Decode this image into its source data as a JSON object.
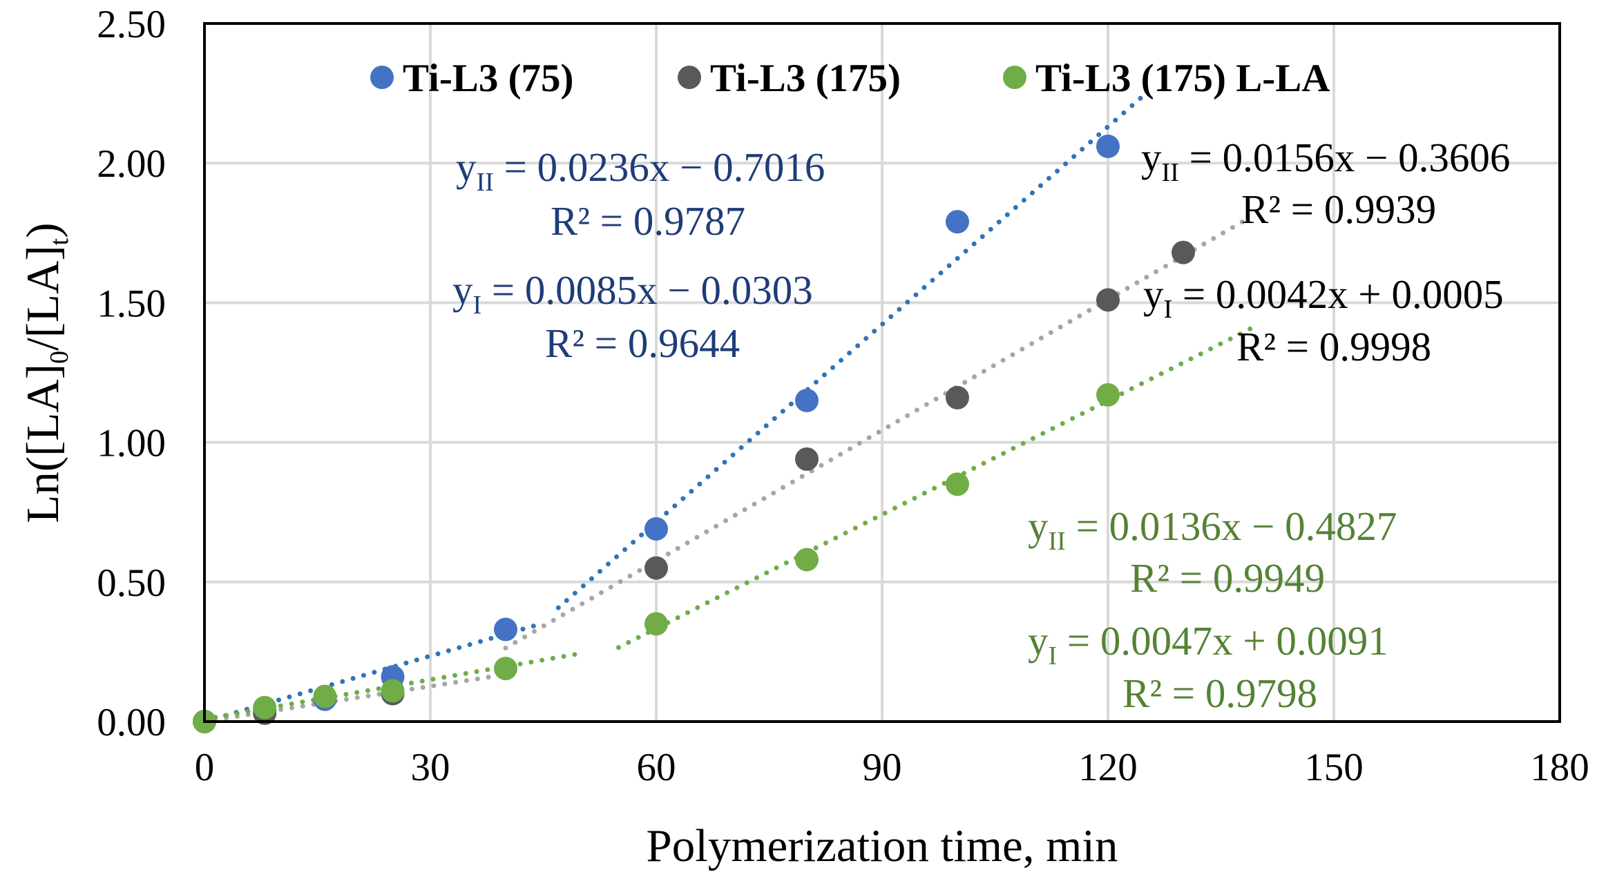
{
  "chart_data": {
    "type": "scatter",
    "xlabel": "Polymerization time, min",
    "ylabel_main": "Ln([LA]",
    "ylabel_sub0": "0",
    "ylabel_mid": "/[LA]",
    "ylabel_subt": "t",
    "ylabel_close": ")",
    "xlim": [
      0,
      180
    ],
    "ylim": [
      0,
      2.5
    ],
    "x_ticks": [
      "0",
      "30",
      "60",
      "90",
      "120",
      "150",
      "180"
    ],
    "x_tick_values": [
      0,
      30,
      60,
      90,
      120,
      150,
      180
    ],
    "y_ticks": [
      "0.00",
      "0.50",
      "1.00",
      "1.50",
      "2.00",
      "2.50"
    ],
    "y_tick_values": [
      0,
      0.5,
      1.0,
      1.5,
      2.0,
      2.5
    ],
    "grid": true,
    "legend_position": "top",
    "series": [
      {
        "name": "Ti-L3 (75)",
        "color": "#4472C4",
        "trend_color": "#2E75B6",
        "x": [
          0,
          8,
          16,
          25,
          40,
          60,
          80,
          100,
          120
        ],
        "y": [
          0.0,
          0.04,
          0.08,
          0.16,
          0.33,
          0.69,
          1.15,
          1.79,
          2.06
        ],
        "fits": [
          {
            "x_range": [
              0,
              45
            ],
            "slope": 0.0085,
            "intercept": -0.0303
          },
          {
            "x_range": [
              47,
              125
            ],
            "slope": 0.0236,
            "intercept": -0.7016
          }
        ],
        "eq_II": {
          "pre": "y",
          "sub": "II",
          "post": " = 0.0236x − 0.7016",
          "r2": "R² = 0.9787",
          "color": "#1F3C78"
        },
        "eq_I": {
          "pre": "y",
          "sub": "I",
          "post": " = 0.0085x − 0.0303",
          "r2": "R² = 0.9644",
          "color": "#1F3C78"
        }
      },
      {
        "name": "Ti-L3 (175)",
        "color": "#595959",
        "trend_color": "#A6A6A6",
        "x": [
          0,
          8,
          25,
          60,
          80,
          100,
          120,
          130
        ],
        "y": [
          0.0,
          0.03,
          0.1,
          0.55,
          0.94,
          1.16,
          1.51,
          1.68
        ],
        "fits": [
          {
            "x_range": [
              0,
              40
            ],
            "slope": 0.0042,
            "intercept": 0.0005
          },
          {
            "x_range": [
              40,
              138
            ],
            "slope": 0.0156,
            "intercept": -0.3606
          }
        ],
        "eq_II": {
          "pre": "y",
          "sub": "II",
          "post": " = 0.0156x − 0.3606",
          "r2": "R² = 0.9939",
          "color": "#000000"
        },
        "eq_I": {
          "pre": "y",
          "sub": "I",
          "post": " = 0.0042x + 0.0005",
          "r2": "R² = 0.9998",
          "color": "#000000"
        }
      },
      {
        "name": "Ti-L3 (175) L-LA",
        "color": "#70AD47",
        "trend_color": "#70AD47",
        "x": [
          0,
          8,
          16,
          25,
          40,
          60,
          80,
          100,
          120
        ],
        "y": [
          0.0,
          0.05,
          0.09,
          0.11,
          0.19,
          0.35,
          0.58,
          0.85,
          1.17
        ],
        "fits": [
          {
            "x_range": [
              0,
              50
            ],
            "slope": 0.0047,
            "intercept": 0.0091
          },
          {
            "x_range": [
              55,
              140
            ],
            "slope": 0.0136,
            "intercept": -0.4827
          }
        ],
        "eq_II": {
          "pre": "y",
          "sub": "II",
          "post": " = 0.0136x − 0.4827",
          "r2": "R² = 0.9949",
          "color": "#548235"
        },
        "eq_I": {
          "pre": "y",
          "sub": "I",
          "post": " = 0.0047x + 0.0091",
          "r2": "R² = 0.9798",
          "color": "#548235"
        }
      }
    ]
  }
}
